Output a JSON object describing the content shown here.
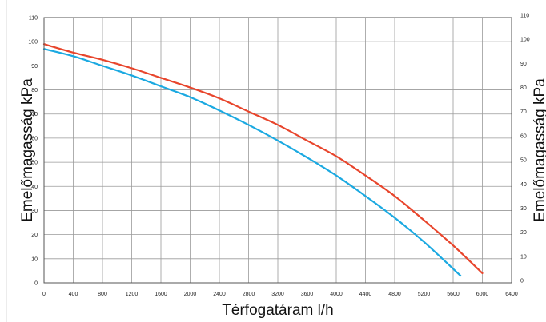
{
  "chart_data": {
    "type": "line",
    "xlabel": "Térfogatáram l/h",
    "ylabel_left": "Emelőmagasság kPa",
    "ylabel_right": "Emelőmagasság kPa",
    "xlim": [
      0,
      6400
    ],
    "ylim": [
      0,
      110
    ],
    "x_ticks": [
      "0",
      "400",
      "800",
      "1200",
      "1600",
      "2000",
      "2400",
      "2800",
      "3200",
      "3600",
      "4000",
      "4400",
      "4800",
      "5200",
      "5600",
      "6000",
      "6400"
    ],
    "y_ticks": [
      "0",
      "10",
      "20",
      "30",
      "40",
      "50",
      "60",
      "70",
      "80",
      "90",
      "100",
      "110"
    ],
    "grid": true,
    "series": [
      {
        "color": "#e8452c",
        "x": [
          0,
          400,
          800,
          1200,
          1600,
          2000,
          2400,
          2800,
          3200,
          3600,
          4000,
          4400,
          4800,
          5200,
          5600,
          6000
        ],
        "y": [
          99,
          95.5,
          92.5,
          89,
          85,
          81,
          76.5,
          71,
          65.5,
          59,
          52.5,
          44.5,
          36,
          26,
          15.5,
          4
        ]
      },
      {
        "color": "#1ba9e1",
        "x": [
          0,
          400,
          800,
          1200,
          1600,
          2000,
          2400,
          2800,
          3200,
          3600,
          4000,
          4400,
          4800,
          5200,
          5700
        ],
        "y": [
          97,
          94,
          90,
          86,
          81.5,
          77,
          71.5,
          65.5,
          59,
          52,
          44.5,
          36,
          27,
          17,
          3
        ]
      }
    ]
  }
}
